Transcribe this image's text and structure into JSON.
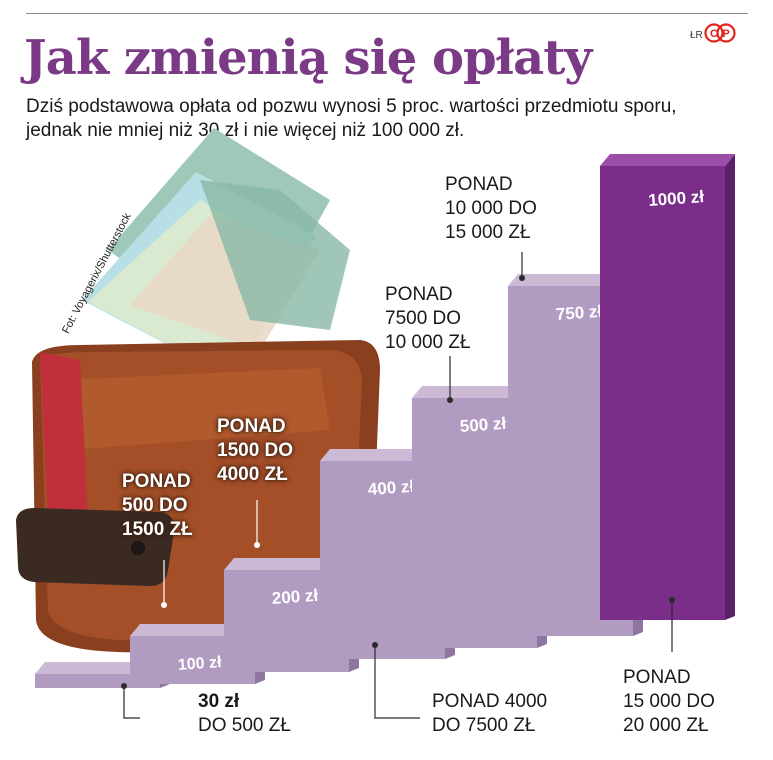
{
  "header": {
    "title": "Jak zmienią się opłaty",
    "credit": "ŁR",
    "logo_text": "CP",
    "subtitle": "Dziś podstawowa opłata od pozwu wynosi 5 proc. wartości przedmiotu sporu, jednak nie mniej niż 30 zł i nie więcej niż 100 000 zł."
  },
  "photo_credit": "Fot: Voyagerix/Shutterstock",
  "colors": {
    "title": "#7b3a86",
    "bar_light_front": "#b19bc0",
    "bar_light_top": "#cbb9d6",
    "bar_light_side": "#8f76a0",
    "bar_dark_front": "#7b2d8a",
    "bar_dark_top": "#9a4ea8",
    "bar_dark_side": "#5c1f6a"
  },
  "icons": [
    "wallet-photo",
    "banknote-photo",
    "cp-logo"
  ],
  "chart_data": {
    "type": "bar",
    "title": "Jak zmienią się opłaty",
    "xlabel": "",
    "ylabel": "",
    "unit": "zł",
    "ylim": [
      0,
      1000
    ],
    "categories": [
      [
        "DO 500 ZŁ"
      ],
      [
        "PONAD",
        "500 DO",
        "1500 ZŁ"
      ],
      [
        "PONAD",
        "1500 DO",
        "4000 ZŁ"
      ],
      [
        "PONAD 4000",
        "DO 7500 ZŁ"
      ],
      [
        "PONAD",
        "7500 DO",
        "10 000 ZŁ"
      ],
      [
        "PONAD",
        "10 000 DO",
        "15 000 ZŁ"
      ],
      [
        "PONAD",
        "15 000 DO",
        "20 000 ZŁ"
      ]
    ],
    "values": [
      30,
      100,
      200,
      400,
      500,
      750,
      1000
    ],
    "value_labels": [
      "30 zł",
      "100 zł",
      "200 zł",
      "400 zł",
      "500 zł",
      "750 zł",
      "1000 zł"
    ],
    "highlight_index": 6
  }
}
